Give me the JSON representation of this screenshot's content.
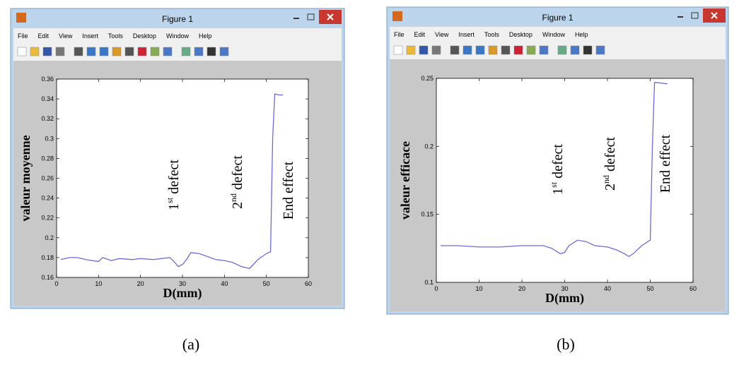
{
  "windows": [
    {
      "title": "Figure 1",
      "menu": [
        "File",
        "Edit",
        "View",
        "Insert",
        "Tools",
        "Desktop",
        "Window",
        "Help"
      ]
    },
    {
      "title": "Figure 1",
      "menu": [
        "File",
        "Edit",
        "View",
        "Insert",
        "Tools",
        "Desktop",
        "Window",
        "Help"
      ]
    }
  ],
  "captions": [
    "(a)",
    "(b)"
  ],
  "chart_data": [
    {
      "type": "line",
      "xlabel": "D(mm)",
      "ylabel": "valeur moyenne",
      "color": "#6b6bd6",
      "x": [
        1,
        3,
        5,
        7,
        10,
        11,
        13,
        15,
        18,
        20,
        23,
        25,
        27,
        28,
        29,
        30,
        31,
        32,
        34,
        36,
        38,
        40,
        42,
        44,
        46,
        48,
        50,
        51,
        51.5,
        52,
        53,
        54
      ],
      "values": [
        0.178,
        0.18,
        0.18,
        0.178,
        0.176,
        0.18,
        0.177,
        0.179,
        0.178,
        0.179,
        0.178,
        0.179,
        0.18,
        0.176,
        0.171,
        0.173,
        0.178,
        0.185,
        0.184,
        0.181,
        0.178,
        0.177,
        0.175,
        0.171,
        0.169,
        0.178,
        0.184,
        0.186,
        0.3,
        0.345,
        0.344,
        0.344
      ],
      "xlim": [
        0,
        60
      ],
      "xticks": [
        0,
        10,
        20,
        30,
        40,
        50,
        60
      ],
      "ylim": [
        0.16,
        0.36
      ],
      "yticks": [
        0.16,
        0.18,
        0.2,
        0.22,
        0.24,
        0.26,
        0.28,
        0.3,
        0.32,
        0.34,
        0.36
      ],
      "annotations": [
        {
          "base": "1",
          "sup": "st",
          "text": "defect"
        },
        {
          "base": "2",
          "sup": "nd",
          "text": "defect"
        },
        {
          "text": "End effect"
        }
      ]
    },
    {
      "type": "line",
      "xlabel": "D(mm)",
      "ylabel": "valeur efficace",
      "color": "#6b6bd6",
      "x": [
        1,
        5,
        10,
        15,
        20,
        25,
        27,
        29,
        30,
        31,
        33,
        35,
        37,
        40,
        42,
        44,
        45,
        46,
        48,
        50,
        50.5,
        51,
        54
      ],
      "values": [
        0.127,
        0.127,
        0.126,
        0.126,
        0.127,
        0.127,
        0.125,
        0.121,
        0.122,
        0.127,
        0.131,
        0.13,
        0.127,
        0.126,
        0.124,
        0.121,
        0.119,
        0.121,
        0.127,
        0.131,
        0.2,
        0.247,
        0.246
      ],
      "xlim": [
        0,
        60
      ],
      "xticks": [
        0,
        10,
        20,
        30,
        40,
        50,
        60
      ],
      "ylim": [
        0.1,
        0.25
      ],
      "yticks": [
        0.1,
        0.15,
        0.2,
        0.25
      ],
      "annotations": [
        {
          "base": "1",
          "sup": "st",
          "text": "defect"
        },
        {
          "base": "2",
          "sup": "nd",
          "text": "defect"
        },
        {
          "text": "End effect"
        }
      ]
    }
  ]
}
